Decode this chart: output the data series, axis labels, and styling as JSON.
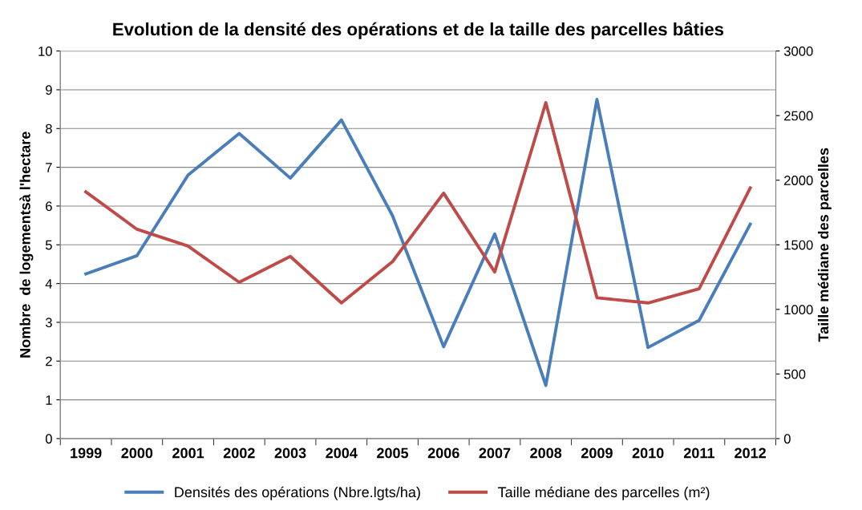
{
  "chart_data": {
    "type": "line",
    "title": "Evolution de la densité des opérations et de la taille des parcelles bâties",
    "ylabel": "Nombre  de logementsà l'hectare",
    "y2label": "Taille médiane des parcelles",
    "categories": [
      "1999",
      "2000",
      "2001",
      "2002",
      "2003",
      "2004",
      "2005",
      "2006",
      "2007",
      "2008",
      "2009",
      "2010",
      "2011",
      "2012"
    ],
    "series": [
      {
        "name": "Densités des opérations (Nbre.lgts/ha)",
        "color": "#4a7ebb",
        "values": [
          4.25,
          4.72,
          6.8,
          7.87,
          6.72,
          8.22,
          5.75,
          2.37,
          5.28,
          1.37,
          8.75,
          2.35,
          3.05,
          5.53
        ]
      },
      {
        "name": "Taille médiane des parcelles (m²)",
        "color": "#be4b48",
        "axis": "y2",
        "values": [
          1910,
          1620,
          1490,
          1210,
          1410,
          1050,
          1370,
          1900,
          1290,
          2600,
          1090,
          1050,
          1160,
          1940
        ]
      }
    ],
    "ylim": [
      0,
      10
    ],
    "yticks": [
      0,
      1,
      2,
      3,
      4,
      5,
      6,
      7,
      8,
      9,
      10
    ],
    "y2lim": [
      0,
      3000
    ],
    "y2ticks": [
      0,
      500,
      1000,
      1500,
      2000,
      2500,
      3000
    ],
    "grid": "y",
    "legend": "bottom",
    "marker": "none",
    "line_style": "solid"
  }
}
